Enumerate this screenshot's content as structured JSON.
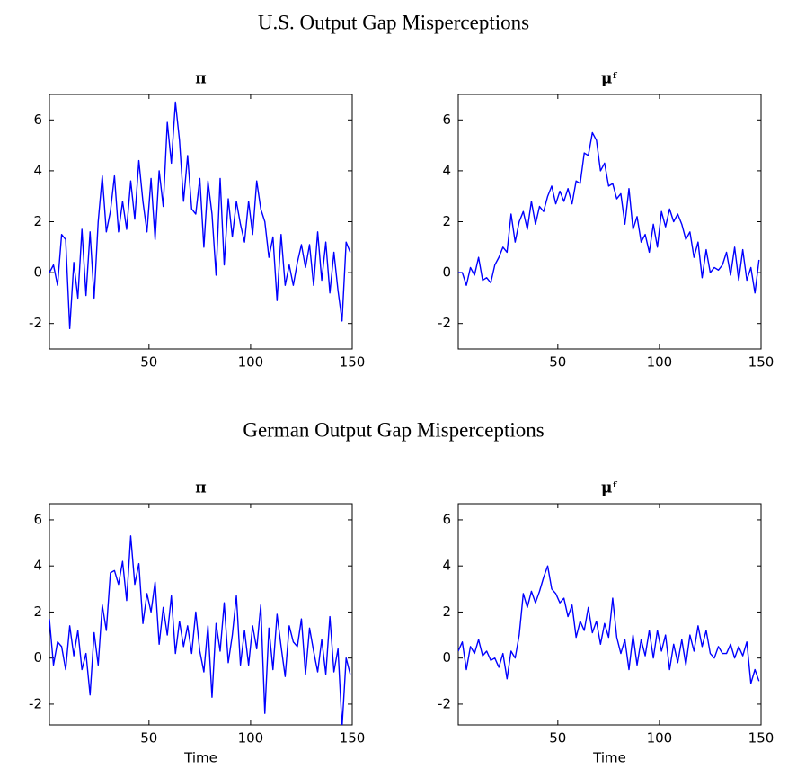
{
  "headings": [
    "U.S. Output Gap Misperceptions",
    "German Output Gap Misperceptions"
  ],
  "chart_data": [
    {
      "type": "line",
      "title": "π",
      "x": [
        1,
        3,
        5,
        7,
        9,
        11,
        13,
        15,
        17,
        19,
        21,
        23,
        25,
        27,
        29,
        31,
        33,
        35,
        37,
        39,
        41,
        43,
        45,
        47,
        49,
        51,
        53,
        55,
        57,
        59,
        61,
        63,
        65,
        67,
        69,
        71,
        73,
        75,
        77,
        79,
        81,
        83,
        85,
        87,
        89,
        91,
        93,
        95,
        97,
        99,
        101,
        103,
        105,
        107,
        109,
        111,
        113,
        115,
        117,
        119,
        121,
        123,
        125,
        127,
        129,
        131,
        133,
        135,
        137,
        139,
        141,
        143,
        145,
        147,
        149
      ],
      "series": [
        {
          "color": "#0000ff",
          "values": [
            0,
            0.3,
            -0.5,
            1.5,
            1.3,
            -2.2,
            0.4,
            -1.0,
            1.7,
            -0.9,
            1.6,
            -1.0,
            2.0,
            3.8,
            1.6,
            2.4,
            3.8,
            1.6,
            2.8,
            1.7,
            3.6,
            2.1,
            4.4,
            2.8,
            1.6,
            3.7,
            1.3,
            4.0,
            2.6,
            5.9,
            4.3,
            6.7,
            5.2,
            2.8,
            4.6,
            2.5,
            2.3,
            3.7,
            1.0,
            3.6,
            2.3,
            -0.1,
            3.7,
            0.3,
            2.9,
            1.4,
            2.8,
            1.9,
            1.2,
            2.8,
            1.5,
            3.6,
            2.5,
            2.0,
            0.6,
            1.4,
            -1.1,
            1.5,
            -0.5,
            0.3,
            -0.5,
            0.4,
            1.1,
            0.2,
            1.1,
            -0.5,
            1.6,
            -0.3,
            1.2,
            -0.8,
            0.8,
            -0.7,
            -1.9,
            1.2,
            0.8
          ]
        }
      ],
      "xlim": [
        1,
        150
      ],
      "ylim": [
        -3,
        7
      ],
      "xticks": [
        50,
        100,
        150
      ],
      "yticks": [
        -2,
        0,
        2,
        4,
        6
      ]
    },
    {
      "type": "line",
      "title": "μᶠ",
      "x": [
        1,
        3,
        5,
        7,
        9,
        11,
        13,
        15,
        17,
        19,
        21,
        23,
        25,
        27,
        29,
        31,
        33,
        35,
        37,
        39,
        41,
        43,
        45,
        47,
        49,
        51,
        53,
        55,
        57,
        59,
        61,
        63,
        65,
        67,
        69,
        71,
        73,
        75,
        77,
        79,
        81,
        83,
        85,
        87,
        89,
        91,
        93,
        95,
        97,
        99,
        101,
        103,
        105,
        107,
        109,
        111,
        113,
        115,
        117,
        119,
        121,
        123,
        125,
        127,
        129,
        131,
        133,
        135,
        137,
        139,
        141,
        143,
        145,
        147,
        149
      ],
      "series": [
        {
          "color": "#0000ff",
          "values": [
            0,
            0,
            -0.5,
            0.2,
            -0.1,
            0.6,
            -0.3,
            -0.2,
            -0.4,
            0.3,
            0.6,
            1.0,
            0.8,
            2.3,
            1.2,
            2.0,
            2.4,
            1.7,
            2.8,
            1.9,
            2.6,
            2.4,
            3.0,
            3.4,
            2.7,
            3.2,
            2.8,
            3.3,
            2.7,
            3.6,
            3.5,
            4.7,
            4.6,
            5.5,
            5.2,
            4.0,
            4.3,
            3.4,
            3.5,
            2.9,
            3.1,
            1.9,
            3.3,
            1.7,
            2.2,
            1.2,
            1.5,
            0.8,
            1.9,
            1.0,
            2.4,
            1.8,
            2.5,
            2.0,
            2.3,
            1.9,
            1.3,
            1.6,
            0.6,
            1.2,
            -0.2,
            0.9,
            0.0,
            0.2,
            0.1,
            0.3,
            0.8,
            -0.1,
            1.0,
            -0.3,
            0.9,
            -0.3,
            0.2,
            -0.8,
            0.5
          ]
        }
      ],
      "xlim": [
        1,
        150
      ],
      "ylim": [
        -3,
        7
      ],
      "xticks": [
        50,
        100,
        150
      ],
      "yticks": [
        -2,
        0,
        2,
        4,
        6
      ]
    },
    {
      "type": "line",
      "title": "π",
      "xlabel": "Time",
      "x": [
        1,
        3,
        5,
        7,
        9,
        11,
        13,
        15,
        17,
        19,
        21,
        23,
        25,
        27,
        29,
        31,
        33,
        35,
        37,
        39,
        41,
        43,
        45,
        47,
        49,
        51,
        53,
        55,
        57,
        59,
        61,
        63,
        65,
        67,
        69,
        71,
        73,
        75,
        77,
        79,
        81,
        83,
        85,
        87,
        89,
        91,
        93,
        95,
        97,
        99,
        101,
        103,
        105,
        107,
        109,
        111,
        113,
        115,
        117,
        119,
        121,
        123,
        125,
        127,
        129,
        131,
        133,
        135,
        137,
        139,
        141,
        143,
        145,
        147,
        149
      ],
      "series": [
        {
          "color": "#0000ff",
          "values": [
            1.7,
            -0.3,
            0.7,
            0.5,
            -0.5,
            1.4,
            0.1,
            1.2,
            -0.5,
            0.2,
            -1.6,
            1.1,
            -0.3,
            2.3,
            1.2,
            3.7,
            3.8,
            3.2,
            4.2,
            2.5,
            5.3,
            3.2,
            4.1,
            1.5,
            2.8,
            2.0,
            3.3,
            0.6,
            2.2,
            1.0,
            2.7,
            0.2,
            1.6,
            0.5,
            1.4,
            0.2,
            2.0,
            0.3,
            -0.6,
            1.4,
            -1.7,
            1.5,
            0.3,
            2.4,
            -0.2,
            1.0,
            2.7,
            -0.3,
            1.2,
            -0.3,
            1.4,
            0.4,
            2.3,
            -2.4,
            1.3,
            -0.5,
            1.9,
            0.5,
            -0.8,
            1.4,
            0.7,
            0.5,
            1.7,
            -0.7,
            1.3,
            0.3,
            -0.6,
            0.8,
            -0.7,
            1.8,
            -0.6,
            0.4,
            -3.0,
            0.0,
            -0.7
          ]
        }
      ],
      "xlim": [
        1,
        150
      ],
      "ylim": [
        -2.9,
        6.7
      ],
      "xticks": [
        50,
        100,
        150
      ],
      "yticks": [
        -2,
        0,
        2,
        4,
        6
      ]
    },
    {
      "type": "line",
      "title": "μᶠ",
      "xlabel": "Time",
      "x": [
        1,
        3,
        5,
        7,
        9,
        11,
        13,
        15,
        17,
        19,
        21,
        23,
        25,
        27,
        29,
        31,
        33,
        35,
        37,
        39,
        41,
        43,
        45,
        47,
        49,
        51,
        53,
        55,
        57,
        59,
        61,
        63,
        65,
        67,
        69,
        71,
        73,
        75,
        77,
        79,
        81,
        83,
        85,
        87,
        89,
        91,
        93,
        95,
        97,
        99,
        101,
        103,
        105,
        107,
        109,
        111,
        113,
        115,
        117,
        119,
        121,
        123,
        125,
        127,
        129,
        131,
        133,
        135,
        137,
        139,
        141,
        143,
        145,
        147,
        149
      ],
      "series": [
        {
          "color": "#0000ff",
          "values": [
            0.3,
            0.7,
            -0.5,
            0.5,
            0.2,
            0.8,
            0.1,
            0.3,
            -0.1,
            0.0,
            -0.4,
            0.2,
            -0.9,
            0.3,
            0.0,
            1.0,
            2.8,
            2.2,
            2.9,
            2.4,
            2.9,
            3.5,
            4.0,
            3.0,
            2.8,
            2.4,
            2.6,
            1.8,
            2.3,
            0.9,
            1.6,
            1.2,
            2.2,
            1.1,
            1.6,
            0.6,
            1.5,
            0.9,
            2.6,
            0.9,
            0.2,
            0.8,
            -0.5,
            1.0,
            -0.3,
            0.8,
            0.1,
            1.2,
            0.0,
            1.2,
            0.3,
            1.0,
            -0.5,
            0.6,
            -0.2,
            0.8,
            -0.3,
            1.0,
            0.3,
            1.4,
            0.5,
            1.2,
            0.2,
            0.0,
            0.5,
            0.2,
            0.2,
            0.6,
            0.0,
            0.5,
            0.1,
            0.7,
            -1.1,
            -0.5,
            -1.0
          ]
        }
      ],
      "xlim": [
        1,
        150
      ],
      "ylim": [
        -2.9,
        6.7
      ],
      "xticks": [
        50,
        100,
        150
      ],
      "yticks": [
        -2,
        0,
        2,
        4,
        6
      ]
    }
  ]
}
